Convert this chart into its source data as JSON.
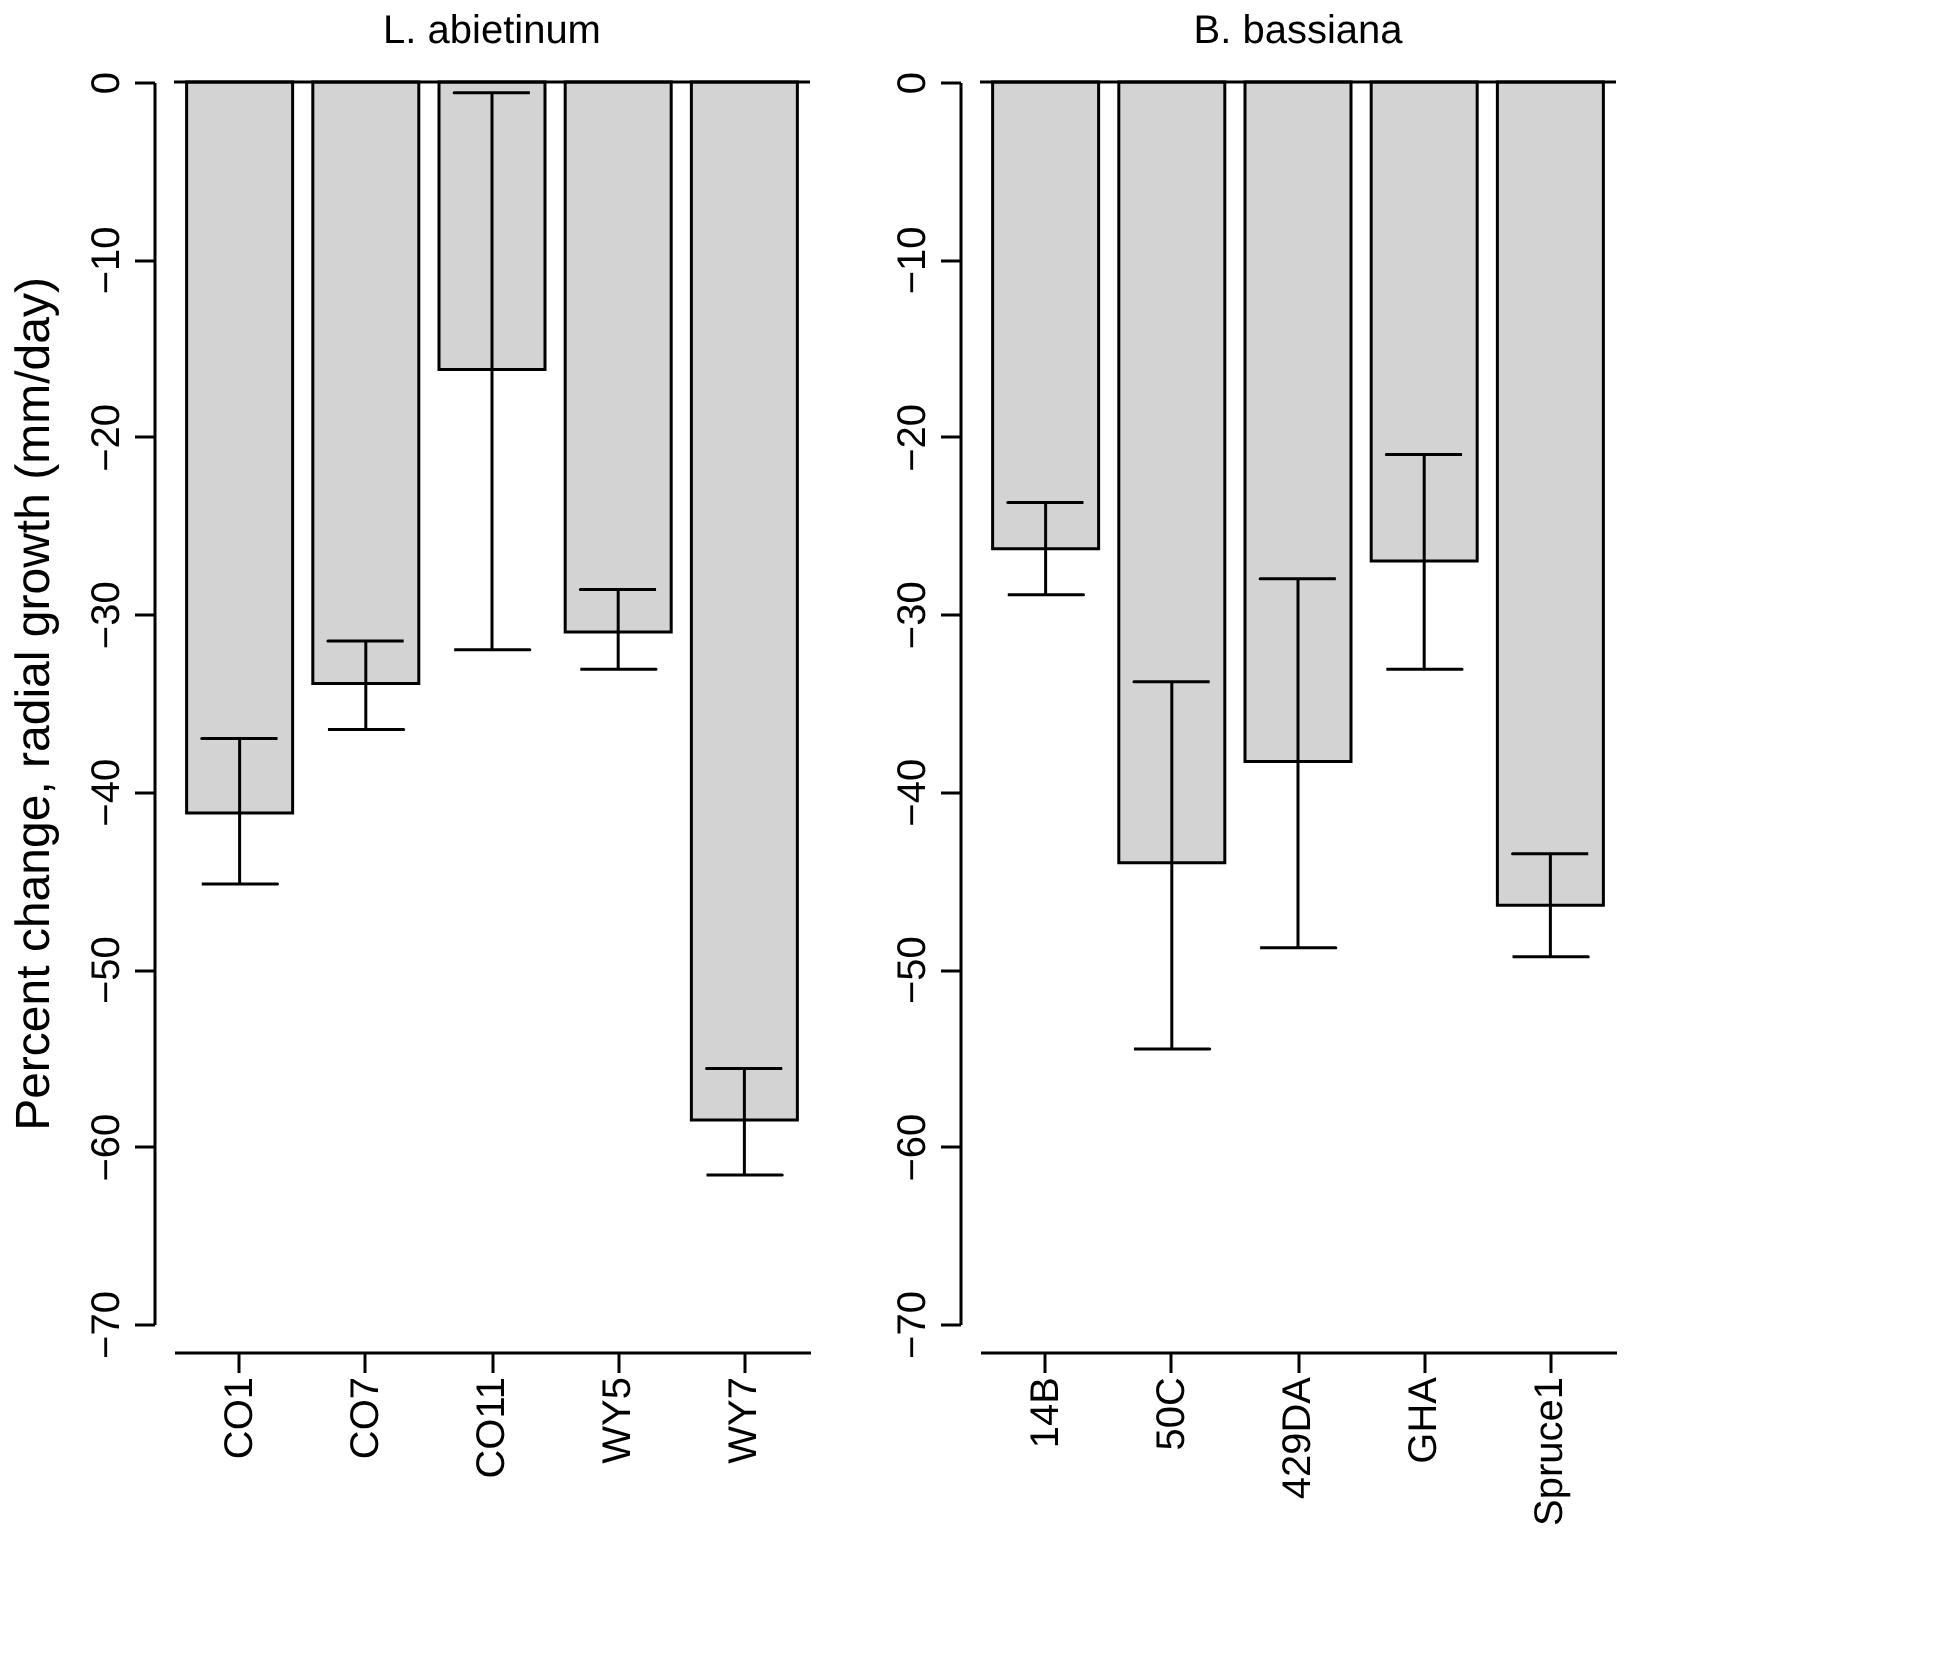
{
  "chart_data": [
    {
      "type": "bar",
      "title": "L. abietinum",
      "ylabel": "Percent change, radial growth (mm/day)",
      "categories": [
        "CO1",
        "CO7",
        "CO11",
        "WY5",
        "WY7"
      ],
      "values": [
        -41.2,
        -33.9,
        -16.2,
        -31.0,
        -58.5
      ],
      "errors": [
        [
          -45.2,
          -37.0
        ],
        [
          -36.5,
          -31.5
        ],
        [
          -32.0,
          -0.6
        ],
        [
          -33.1,
          -28.6
        ],
        [
          -61.6,
          -55.6
        ]
      ],
      "color": "#d3d3d3",
      "ylim": [
        -70,
        0
      ],
      "yticks": [
        -70,
        -60,
        -50,
        -40,
        -30,
        -20,
        -10,
        0
      ],
      "ref_lines": [
        {
          "axis": "y",
          "value": 0
        }
      ],
      "grid": false
    },
    {
      "type": "bar",
      "title": "B. bassiana",
      "categories": [
        "14B",
        "50C",
        "429DA",
        "GHA",
        "Spruce1"
      ],
      "values": [
        -26.3,
        -44.0,
        -38.3,
        -27.0,
        -46.4
      ],
      "errors": [
        [
          -28.9,
          -23.7
        ],
        [
          -54.5,
          -33.8
        ],
        [
          -48.8,
          -28.0
        ],
        [
          -33.1,
          -21.0
        ],
        [
          -49.3,
          -43.5
        ]
      ],
      "color": "#d3d3d3",
      "ylim": [
        -70,
        0
      ],
      "yticks": [
        -70,
        -60,
        -50,
        -40,
        -30,
        -20,
        -10,
        0
      ],
      "ref_lines": [
        {
          "axis": "y",
          "value": 0
        }
      ],
      "grid": false
    }
  ]
}
